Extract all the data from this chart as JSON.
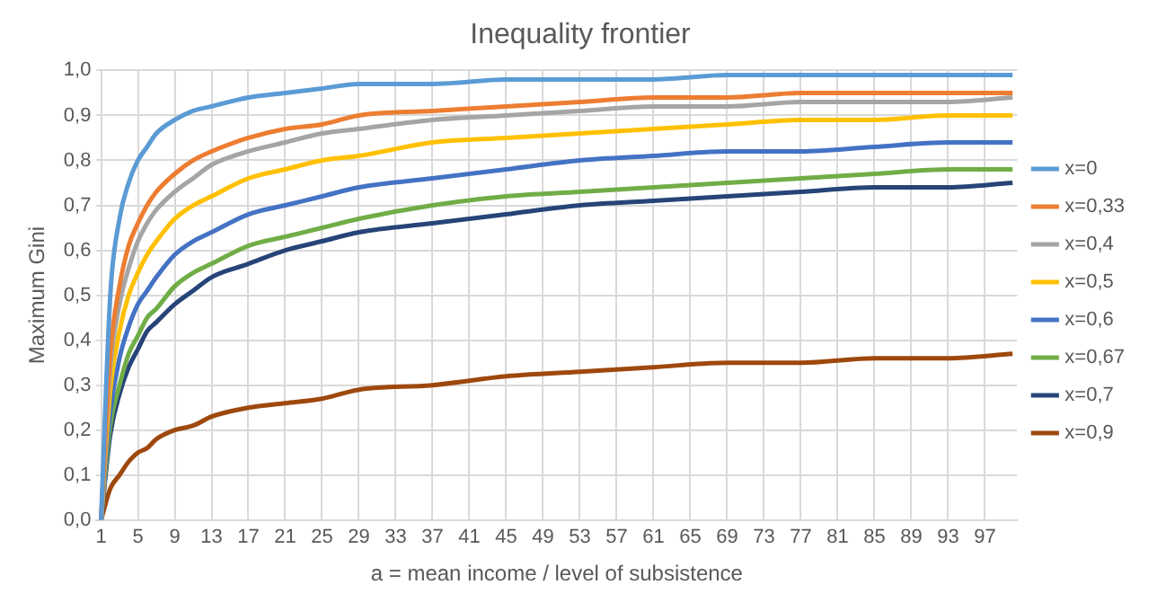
{
  "chart_data": {
    "type": "line",
    "title": "Inequality frontier",
    "xlabel": "a = mean income / level of subsistence",
    "ylabel": "Maximum Gini",
    "x": [
      1,
      2,
      3,
      4,
      5,
      6,
      7,
      9,
      11,
      13,
      17,
      21,
      25,
      29,
      37,
      45,
      53,
      61,
      69,
      77,
      85,
      93,
      100
    ],
    "xlim": [
      0.5,
      100.5
    ],
    "xticks": [
      1,
      5,
      9,
      13,
      17,
      21,
      25,
      29,
      33,
      37,
      41,
      45,
      49,
      53,
      57,
      61,
      65,
      69,
      73,
      77,
      81,
      85,
      89,
      93,
      97
    ],
    "ylim": [
      0,
      1
    ],
    "yticks": [
      {
        "value": 0,
        "label": "0,0"
      },
      {
        "value": 0.1,
        "label": "0,1"
      },
      {
        "value": 0.2,
        "label": "0,2"
      },
      {
        "value": 0.3,
        "label": "0,3"
      },
      {
        "value": 0.4,
        "label": "0,4"
      },
      {
        "value": 0.5,
        "label": "0,5"
      },
      {
        "value": 0.6,
        "label": "0,6"
      },
      {
        "value": 0.7,
        "label": "0,7"
      },
      {
        "value": 0.8,
        "label": "0,8"
      },
      {
        "value": 0.9,
        "label": "0,9"
      },
      {
        "value": 1,
        "label": "1,0"
      }
    ],
    "grid": true,
    "legend": "right",
    "marker": "none",
    "line_style": "solid",
    "series": [
      {
        "name": "x=0",
        "color": "#5b9bd5",
        "values": [
          0,
          0.5,
          0.67,
          0.75,
          0.8,
          0.83,
          0.86,
          0.89,
          0.91,
          0.92,
          0.94,
          0.95,
          0.96,
          0.97,
          0.97,
          0.98,
          0.98,
          0.98,
          0.99,
          0.99,
          0.99,
          0.99,
          0.99
        ]
      },
      {
        "name": "x=0,33",
        "color": "#ed7d31",
        "values": [
          0,
          0.37,
          0.52,
          0.61,
          0.66,
          0.7,
          0.73,
          0.77,
          0.8,
          0.82,
          0.85,
          0.87,
          0.88,
          0.9,
          0.91,
          0.92,
          0.93,
          0.94,
          0.94,
          0.95,
          0.95,
          0.95,
          0.95
        ]
      },
      {
        "name": "x=0,4",
        "color": "#a5a5a5",
        "values": [
          0,
          0.34,
          0.48,
          0.56,
          0.62,
          0.66,
          0.69,
          0.73,
          0.76,
          0.79,
          0.82,
          0.84,
          0.86,
          0.87,
          0.89,
          0.9,
          0.91,
          0.92,
          0.92,
          0.93,
          0.93,
          0.93,
          0.94
        ]
      },
      {
        "name": "x=0,5",
        "color": "#ffc000",
        "values": [
          0,
          0.29,
          0.42,
          0.5,
          0.55,
          0.59,
          0.62,
          0.67,
          0.7,
          0.72,
          0.76,
          0.78,
          0.8,
          0.81,
          0.84,
          0.85,
          0.86,
          0.87,
          0.88,
          0.89,
          0.89,
          0.9,
          0.9
        ]
      },
      {
        "name": "x=0,6",
        "color": "#4472c4",
        "values": [
          0,
          0.24,
          0.36,
          0.43,
          0.48,
          0.51,
          0.54,
          0.59,
          0.62,
          0.64,
          0.68,
          0.7,
          0.72,
          0.74,
          0.76,
          0.78,
          0.8,
          0.81,
          0.82,
          0.82,
          0.83,
          0.84,
          0.84
        ]
      },
      {
        "name": "x=0,67",
        "color": "#70ad47",
        "values": [
          0,
          0.21,
          0.3,
          0.37,
          0.41,
          0.45,
          0.47,
          0.52,
          0.55,
          0.57,
          0.61,
          0.63,
          0.65,
          0.67,
          0.7,
          0.72,
          0.73,
          0.74,
          0.75,
          0.76,
          0.77,
          0.78,
          0.78
        ]
      },
      {
        "name": "x=0,7",
        "color": "#264478",
        "values": [
          0,
          0.19,
          0.28,
          0.34,
          0.38,
          0.42,
          0.44,
          0.48,
          0.51,
          0.54,
          0.57,
          0.6,
          0.62,
          0.64,
          0.66,
          0.68,
          0.7,
          0.71,
          0.72,
          0.73,
          0.74,
          0.74,
          0.75
        ]
      },
      {
        "name": "x=0,9",
        "color": "#9e480e",
        "values": [
          0,
          0.07,
          0.1,
          0.13,
          0.15,
          0.16,
          0.18,
          0.2,
          0.21,
          0.23,
          0.25,
          0.26,
          0.27,
          0.29,
          0.3,
          0.32,
          0.33,
          0.34,
          0.35,
          0.35,
          0.36,
          0.36,
          0.37
        ]
      }
    ]
  }
}
